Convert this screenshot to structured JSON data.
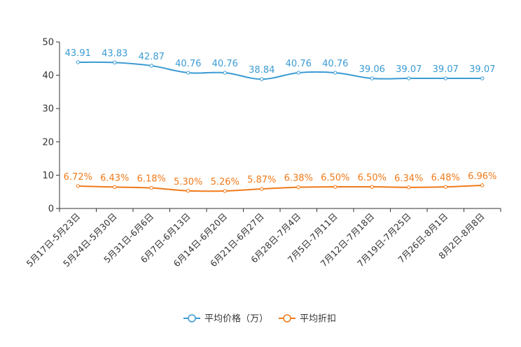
{
  "chart_data": {
    "type": "line",
    "categories": [
      "5月17日-5月23日",
      "5月24日-5月30日",
      "5月31日-6月6日",
      "6月7日-6月13日",
      "6月14日-6月20日",
      "6月21日-6月27日",
      "6月28日-7月4日",
      "7月5日-7月11日",
      "7月12日-7月18日",
      "7月19日-7月25日",
      "7月26日-8月1日",
      "8月2日-8月8日"
    ],
    "series": [
      {
        "name": "平均价格（万）",
        "color": "#3a9bd3",
        "values": [
          43.91,
          43.83,
          42.87,
          40.76,
          40.76,
          38.84,
          40.76,
          40.76,
          39.06,
          39.07,
          39.07,
          39.07
        ],
        "labels": [
          "43.91",
          "43.83",
          "42.87",
          "40.76",
          "40.76",
          "38.84",
          "40.76",
          "40.76",
          "39.06",
          "39.07",
          "39.07",
          "39.07"
        ]
      },
      {
        "name": "平均折扣",
        "color": "#f07a1a",
        "values": [
          6.72,
          6.43,
          6.18,
          5.3,
          5.26,
          5.87,
          6.38,
          6.5,
          6.5,
          6.34,
          6.48,
          6.96
        ],
        "labels": [
          "6.72%",
          "6.43%",
          "6.18%",
          "5.30%",
          "5.26%",
          "5.87%",
          "6.38%",
          "6.50%",
          "6.50%",
          "6.34%",
          "6.48%",
          "6.96%"
        ]
      }
    ],
    "yticks": [
      0,
      10,
      20,
      30,
      40,
      50
    ],
    "ylim": [
      0,
      50
    ],
    "title": "",
    "xlabel": "",
    "ylabel": "",
    "legend_position": "bottom-center",
    "grid": false
  }
}
